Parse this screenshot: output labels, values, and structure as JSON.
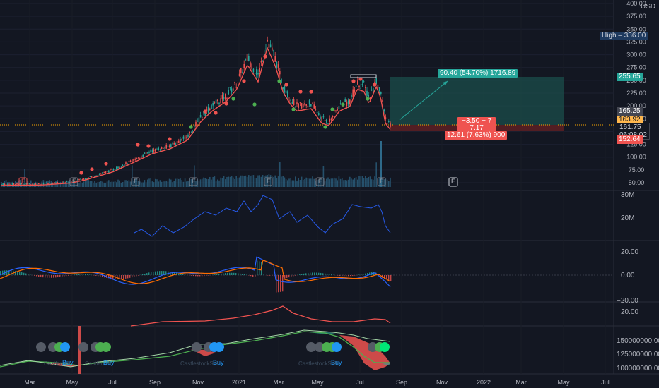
{
  "currency": "USD",
  "price_axis": [
    "400.00",
    "375.00",
    "350.00",
    "325.00",
    "300.00",
    "275.00",
    "250.00",
    "225.00",
    "200.00",
    "175.00",
    "150.00",
    "125.00",
    "100.00",
    "75.00",
    "50.00"
  ],
  "time_axis": [
    "Mar",
    "May",
    "Jul",
    "Sep",
    "Nov",
    "2021",
    "Mar",
    "May",
    "Jul",
    "Sep",
    "Nov",
    "2022",
    "Mar",
    "May",
    "Jul"
  ],
  "high_label": "High",
  "high_value": "336.00",
  "price_tags": {
    "target": "255.65",
    "level1": "165.25",
    "level2": "163.92",
    "current": "161.75",
    "countdown": "06:08:02",
    "stop": "152.64"
  },
  "position_tool": {
    "target_text": "90.40 (54.70%) 1716.89",
    "mid_line1": "−3.50 − 7",
    "mid_line2": "7.17",
    "stop_text": "12.61 (7.63%) 900"
  },
  "earnings_marker": "E",
  "volume_axis": [
    "30M",
    "20M"
  ],
  "macd_axis": [
    "20.00",
    "0.00",
    "−20.00"
  ],
  "line_axis": [
    "20.00"
  ],
  "bottom_axis": [
    "150000000.00",
    "125000000.00",
    "100000000.00"
  ],
  "signal_labels": [
    {
      "text": "Buy",
      "faint": "Castlerock"
    },
    {
      "text": "Buy",
      "faint": "Castlerock"
    },
    {
      "text": "Buy",
      "faint": "CastlestockSell"
    },
    {
      "text": "Buy",
      "faint": "CastlestockSell"
    }
  ],
  "colors": {
    "background": "#131722",
    "up": "#26a69a",
    "down": "#ef5350",
    "target_zone": "#1b4d4b",
    "stop_zone": "#5a1f24",
    "volume_line": "#2962ff",
    "macd_signal": "#ff6d00",
    "high_tag": "#1e3a5f"
  },
  "chart_data": {
    "type": "line",
    "title": "",
    "ylabel": "USD",
    "ylim": [
      40,
      400
    ],
    "x_ticks": [
      "Mar",
      "May",
      "Jul",
      "Sep",
      "Nov",
      "2021",
      "Mar",
      "May",
      "Jul",
      "Sep",
      "Nov",
      "2022",
      "Mar",
      "May",
      "Jul"
    ],
    "series": [
      {
        "values": [
          45,
          46,
          48,
          50,
          52,
          55,
          58,
          62,
          68,
          75,
          85,
          95,
          105,
          115,
          125,
          140,
          155,
          175,
          185,
          195,
          205,
          215,
          225,
          235,
          250,
          275,
          300,
          320,
          305,
          290,
          275,
          260,
          245,
          235,
          225,
          215,
          205,
          195,
          185,
          180,
          190,
          200,
          215,
          230,
          245,
          255,
          250,
          240,
          230,
          210,
          185,
          170,
          162
        ]
      }
    ],
    "position": {
      "entry": 165.25,
      "target": 255.65,
      "stop": 152.64,
      "current": 161.75,
      "high": 336.0
    }
  }
}
